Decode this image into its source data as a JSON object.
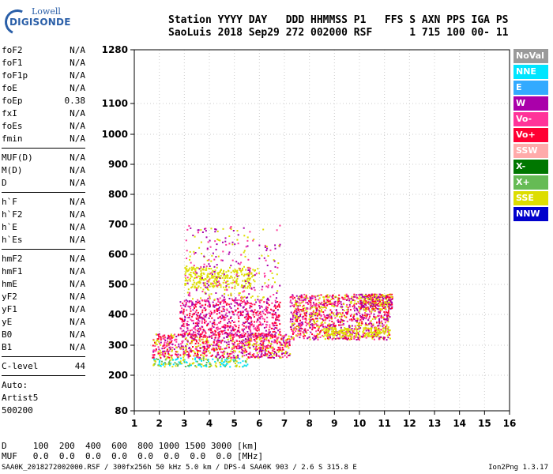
{
  "logo": {
    "line1": "Lowell",
    "line2": "DIGISONDE"
  },
  "header": {
    "labels": "Station YYYY DAY   DDD HHMMSS P1   FFS S AXN PPS IGA PS",
    "values": "SaoLuis 2018 Sep29 272 002000 RSF      1 715 100 00- 11"
  },
  "params": [
    [
      {
        "name": "foF2",
        "value": "N/A"
      },
      {
        "name": "foF1",
        "value": "N/A"
      },
      {
        "name": "foF1p",
        "value": "N/A"
      },
      {
        "name": "foE",
        "value": "N/A"
      },
      {
        "name": "foEp",
        "value": "0.38"
      },
      {
        "name": "fxI",
        "value": "N/A"
      },
      {
        "name": "foEs",
        "value": "N/A"
      },
      {
        "name": "fmin",
        "value": "N/A"
      }
    ],
    [
      {
        "name": "MUF(D)",
        "value": "N/A"
      },
      {
        "name": "M(D)",
        "value": "N/A"
      },
      {
        "name": "D",
        "value": "N/A"
      }
    ],
    [
      {
        "name": "h`F",
        "value": "N/A"
      },
      {
        "name": "h`F2",
        "value": "N/A"
      },
      {
        "name": "h`E",
        "value": "N/A"
      },
      {
        "name": "h`Es",
        "value": "N/A"
      }
    ],
    [
      {
        "name": "hmF2",
        "value": "N/A"
      },
      {
        "name": "hmF1",
        "value": "N/A"
      },
      {
        "name": "hmE",
        "value": "N/A"
      },
      {
        "name": "yF2",
        "value": "N/A"
      },
      {
        "name": "yF1",
        "value": "N/A"
      },
      {
        "name": "yE",
        "value": "N/A"
      },
      {
        "name": "B0",
        "value": "N/A"
      },
      {
        "name": "B1",
        "value": "N/A"
      }
    ],
    [
      {
        "name": "C-level",
        "value": "44"
      }
    ]
  ],
  "auto": {
    "line1": "Auto:",
    "line2": "Artist5",
    "line3": "500200"
  },
  "legend": [
    {
      "label": "NoVal",
      "color": "#9a9a9a"
    },
    {
      "label": "NNE",
      "color": "#00e5ff"
    },
    {
      "label": "E",
      "color": "#33aaff"
    },
    {
      "label": "W",
      "color": "#aa00aa"
    },
    {
      "label": "Vo-",
      "color": "#ff3399"
    },
    {
      "label": "Vo+",
      "color": "#ff0033"
    },
    {
      "label": "SSW",
      "color": "#ffaaaa"
    },
    {
      "label": "X-",
      "color": "#007700"
    },
    {
      "label": "X+",
      "color": "#66bb55"
    },
    {
      "label": "SSE",
      "color": "#dddd00"
    },
    {
      "label": "NNW",
      "color": "#0000cc"
    }
  ],
  "bottom": {
    "d_row": "D     100  200  400  600  800 1000 1500 3000 [km]",
    "muf_row": "MUF   0.0  0.0  0.0  0.0  0.0  0.0  0.0  0.0 [MHz]"
  },
  "footer": {
    "left": "SAA0K_2018272002000.RSF / 300fx256h 50 kHz 5.0 km / DPS-4 SAA0K 903 / 2.6 S 315.8 E",
    "right": "Ion2Png 1.3.17"
  },
  "chart_data": {
    "type": "scatter",
    "x_ticks": [
      "1",
      "2",
      "3",
      "4",
      "5",
      "6",
      "7",
      "8",
      "9",
      "10",
      "11",
      "12",
      "13",
      "14",
      "15",
      "16"
    ],
    "y_ticks": [
      "80",
      "200",
      "300",
      "400",
      "500",
      "600",
      "700",
      "800",
      "900",
      "1000",
      "1100",
      "1280"
    ],
    "xlim": [
      1,
      16
    ],
    "ylim": [
      80,
      1280
    ],
    "y_scale": "tick-labeled (nonlinear spacing: 1280 at top)",
    "grid": true,
    "legend_position": "right",
    "clusters": [
      {
        "desc": "dense F-layer trace",
        "x_range": [
          1.7,
          7.2
        ],
        "h_range": [
          260,
          340
        ],
        "color_mix": [
          "#ff0033",
          "#ff3399",
          "#aa00aa",
          "#dddd00"
        ]
      },
      {
        "desc": "spread F upper",
        "x_range": [
          2.8,
          6.8
        ],
        "h_range": [
          330,
          450
        ],
        "color_mix": [
          "#ff3399",
          "#aa00aa",
          "#ff0033"
        ]
      },
      {
        "desc": "band extension",
        "x_range": [
          7.2,
          11.2
        ],
        "h_range": [
          320,
          470
        ],
        "color_mix": [
          "#ff0033",
          "#aa00aa",
          "#ff3399",
          "#dddd00"
        ]
      },
      {
        "desc": "second band",
        "x_range": [
          10.0,
          11.3
        ],
        "h_range": [
          420,
          470
        ],
        "color_mix": [
          "#aa00aa",
          "#ff0033",
          "#dddd00"
        ]
      },
      {
        "desc": "lower edge yellow",
        "x_range": [
          1.7,
          5.5
        ],
        "h_range": [
          230,
          260
        ],
        "color_mix": [
          "#dddd00",
          "#66bb55",
          "#00e5ff"
        ]
      },
      {
        "desc": "second hop yellow",
        "x_range": [
          3.0,
          5.8
        ],
        "h_range": [
          490,
          560
        ],
        "color_mix": [
          "#dddd00"
        ]
      },
      {
        "desc": "vertical spread columns",
        "x_range": [
          3.0,
          6.8
        ],
        "h_range": [
          450,
          700
        ],
        "color_mix": [
          "#aa00aa",
          "#ff3399",
          "#dddd00"
        ]
      },
      {
        "desc": "yellow bands right",
        "x_range": [
          8.5,
          11.2
        ],
        "h_range": [
          330,
          360
        ],
        "color_mix": [
          "#dddd00"
        ]
      }
    ]
  }
}
